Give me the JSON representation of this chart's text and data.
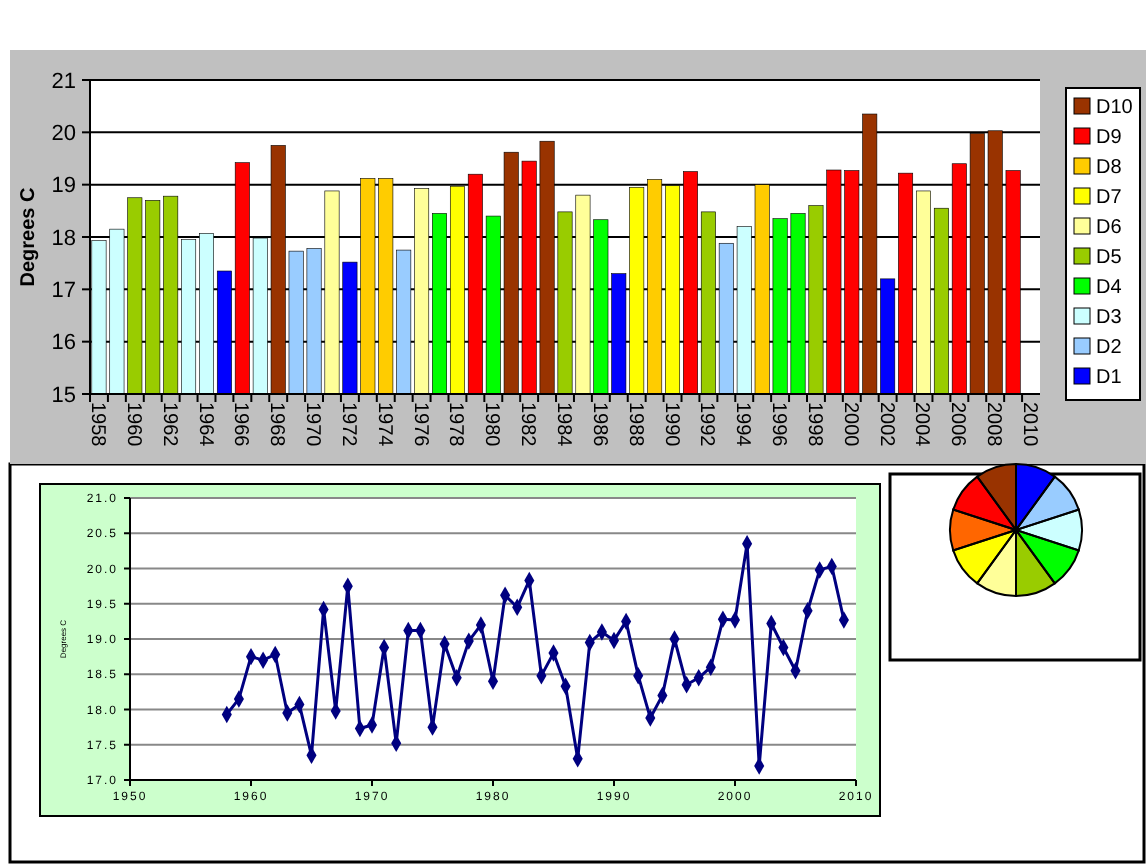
{
  "chart_data": [
    {
      "type": "bar",
      "ylabel": "Degrees C",
      "grid": "y",
      "legend": "right",
      "ylim": [
        15,
        21
      ],
      "yticks": [
        15,
        16,
        17,
        18,
        19,
        20,
        21
      ],
      "categories": [
        "1958",
        null,
        "1960",
        null,
        "1962",
        null,
        "1964",
        null,
        "1966",
        null,
        "1968",
        null,
        "1970",
        null,
        "1972",
        null,
        "1974",
        null,
        "1976",
        null,
        "1978",
        null,
        "1980",
        null,
        "1982",
        null,
        "1984",
        null,
        "1986",
        null,
        "1988",
        null,
        "1990",
        null,
        "1992",
        null,
        "1994",
        null,
        "1996",
        null,
        "1998",
        null,
        "2000",
        null,
        "2002",
        null,
        "2004",
        null,
        "2006",
        null,
        "2008",
        null,
        "2010"
      ],
      "series": [
        {
          "name": "D10",
          "color": "#993300",
          "values": [
            null,
            null,
            null,
            null,
            null,
            null,
            null,
            null,
            null,
            null,
            19.75,
            null,
            null,
            null,
            null,
            null,
            null,
            null,
            null,
            null,
            null,
            null,
            null,
            19.62,
            null,
            19.83,
            null,
            null,
            null,
            null,
            null,
            null,
            null,
            null,
            null,
            null,
            null,
            null,
            null,
            null,
            null,
            null,
            null,
            20.35,
            null,
            null,
            null,
            null,
            null,
            19.98,
            20.03,
            null,
            null
          ]
        },
        {
          "name": "D9",
          "color": "#ff0000",
          "values": [
            null,
            null,
            null,
            null,
            null,
            null,
            null,
            null,
            19.42,
            null,
            null,
            null,
            null,
            null,
            null,
            null,
            null,
            null,
            null,
            null,
            null,
            19.2,
            null,
            null,
            19.45,
            null,
            null,
            null,
            null,
            null,
            null,
            null,
            null,
            19.25,
            null,
            null,
            null,
            null,
            null,
            null,
            null,
            19.28,
            19.27,
            null,
            null,
            19.22,
            null,
            null,
            19.4,
            null,
            null,
            19.27,
            null
          ]
        },
        {
          "name": "D8",
          "color": "#ffcc00",
          "values": [
            null,
            null,
            null,
            null,
            null,
            null,
            null,
            null,
            null,
            null,
            null,
            null,
            null,
            null,
            null,
            19.12,
            19.12,
            null,
            null,
            null,
            null,
            null,
            null,
            null,
            null,
            null,
            null,
            null,
            null,
            null,
            null,
            19.1,
            null,
            null,
            null,
            null,
            null,
            19.0,
            null,
            null,
            null,
            null,
            null,
            null,
            null,
            null,
            null,
            null,
            null,
            null,
            null,
            null,
            null
          ]
        },
        {
          "name": "D7",
          "color": "#ffff00",
          "values": [
            null,
            null,
            null,
            null,
            null,
            null,
            null,
            null,
            null,
            null,
            null,
            null,
            null,
            null,
            null,
            null,
            null,
            null,
            null,
            null,
            18.97,
            null,
            null,
            null,
            null,
            null,
            null,
            null,
            null,
            null,
            18.95,
            null,
            18.98,
            null,
            null,
            null,
            null,
            null,
            null,
            null,
            null,
            null,
            null,
            null,
            null,
            null,
            null,
            null,
            null,
            null,
            null,
            null,
            null
          ]
        },
        {
          "name": "D6",
          "color": "#ffff99",
          "values": [
            null,
            null,
            null,
            null,
            null,
            null,
            null,
            null,
            null,
            null,
            null,
            null,
            null,
            18.88,
            null,
            null,
            null,
            null,
            18.93,
            null,
            null,
            null,
            null,
            null,
            null,
            null,
            null,
            18.8,
            null,
            null,
            null,
            null,
            null,
            null,
            null,
            null,
            null,
            null,
            null,
            null,
            null,
            null,
            null,
            null,
            null,
            null,
            18.88,
            null,
            null,
            null,
            null,
            null,
            null
          ]
        },
        {
          "name": "D5",
          "color": "#99cc00",
          "values": [
            null,
            null,
            18.75,
            18.7,
            18.78,
            null,
            null,
            null,
            null,
            null,
            null,
            null,
            null,
            null,
            null,
            null,
            null,
            null,
            null,
            null,
            null,
            null,
            null,
            null,
            null,
            null,
            18.48,
            null,
            null,
            null,
            null,
            null,
            null,
            null,
            18.48,
            null,
            null,
            null,
            null,
            null,
            18.6,
            null,
            null,
            null,
            null,
            null,
            null,
            18.55,
            null,
            null,
            null,
            null,
            null
          ]
        },
        {
          "name": "D4",
          "color": "#00ff00",
          "values": [
            null,
            null,
            null,
            null,
            null,
            null,
            null,
            null,
            null,
            null,
            null,
            null,
            null,
            null,
            null,
            null,
            null,
            null,
            null,
            18.45,
            null,
            null,
            18.4,
            null,
            null,
            null,
            null,
            null,
            18.33,
            null,
            null,
            null,
            null,
            null,
            null,
            null,
            null,
            null,
            18.35,
            18.45,
            null,
            null,
            null,
            null,
            null,
            null,
            null,
            null,
            null,
            null,
            null,
            null,
            null
          ]
        },
        {
          "name": "D3",
          "color": "#ccffff",
          "values": [
            17.93,
            18.15,
            null,
            null,
            null,
            17.95,
            18.07,
            null,
            null,
            17.98,
            null,
            null,
            null,
            null,
            null,
            null,
            null,
            null,
            null,
            null,
            null,
            null,
            null,
            null,
            null,
            null,
            null,
            null,
            null,
            null,
            null,
            null,
            null,
            null,
            null,
            null,
            18.2,
            null,
            null,
            null,
            null,
            null,
            null,
            null,
            null,
            null,
            null,
            null,
            null,
            null,
            null,
            null,
            null
          ]
        },
        {
          "name": "D2",
          "color": "#99ccff",
          "values": [
            null,
            null,
            null,
            null,
            null,
            null,
            null,
            null,
            null,
            null,
            null,
            17.73,
            17.78,
            null,
            null,
            null,
            null,
            17.75,
            null,
            null,
            null,
            null,
            null,
            null,
            null,
            null,
            null,
            null,
            null,
            null,
            null,
            null,
            null,
            null,
            null,
            17.88,
            null,
            null,
            null,
            null,
            null,
            null,
            null,
            null,
            null,
            null,
            null,
            null,
            null,
            null,
            null,
            null,
            null
          ]
        },
        {
          "name": "D1",
          "color": "#0000ff",
          "values": [
            null,
            null,
            null,
            null,
            null,
            null,
            null,
            17.35,
            null,
            null,
            null,
            null,
            null,
            null,
            17.52,
            null,
            null,
            null,
            null,
            null,
            null,
            null,
            null,
            null,
            null,
            null,
            null,
            null,
            null,
            17.3,
            null,
            null,
            null,
            null,
            null,
            null,
            null,
            null,
            null,
            null,
            null,
            null,
            null,
            null,
            17.2,
            null,
            null,
            null,
            null,
            null,
            null,
            null,
            null
          ]
        }
      ]
    },
    {
      "type": "line",
      "ylabel": "Degrees C",
      "grid": "y",
      "marker": "diamond",
      "xlim": [
        1950,
        2010
      ],
      "xticks": [
        1950,
        1960,
        1970,
        1980,
        1990,
        2000,
        2010
      ],
      "ylim": [
        17,
        21
      ],
      "yticks": [
        {
          "value": 17,
          "label": "17.0"
        },
        {
          "value": 17.5,
          "label": "17.5"
        },
        {
          "value": 18,
          "label": "18.0"
        },
        {
          "value": 18.5,
          "label": "18.5"
        },
        {
          "value": 19,
          "label": "19.0"
        },
        {
          "value": 19.5,
          "label": "19.5"
        },
        {
          "value": 20,
          "label": "20.0"
        },
        {
          "value": 20.5,
          "label": "20.5"
        },
        {
          "value": 21,
          "label": "21.0"
        }
      ],
      "x": [
        1958,
        1959,
        1960,
        1961,
        1962,
        1963,
        1964,
        1965,
        1966,
        1967,
        1968,
        1969,
        1970,
        1971,
        1972,
        1973,
        1974,
        1975,
        1976,
        1977,
        1978,
        1979,
        1980,
        1981,
        1982,
        1983,
        1984,
        1985,
        1986,
        1987,
        1988,
        1989,
        1990,
        1991,
        1992,
        1993,
        1994,
        1995,
        1996,
        1997,
        1998,
        1999,
        2000,
        2001,
        2002,
        2003,
        2004,
        2005,
        2006,
        2007,
        2008,
        2009
      ],
      "series": [
        {
          "color": "#000080",
          "values": [
            17.93,
            18.15,
            18.75,
            18.7,
            18.78,
            17.95,
            18.07,
            17.35,
            19.42,
            17.98,
            19.75,
            17.73,
            17.78,
            18.88,
            17.52,
            19.12,
            19.12,
            17.75,
            18.93,
            18.45,
            18.97,
            19.2,
            18.4,
            19.62,
            19.45,
            19.83,
            18.48,
            18.8,
            18.33,
            17.3,
            18.95,
            19.1,
            18.98,
            19.25,
            18.48,
            17.88,
            18.2,
            19.0,
            18.35,
            18.45,
            18.6,
            19.28,
            19.27,
            20.35,
            17.2,
            19.22,
            18.88,
            18.55,
            19.4,
            19.98,
            20.03,
            19.27
          ]
        }
      ]
    },
    {
      "type": "pie",
      "categories": [
        null,
        null,
        null,
        null,
        null,
        null,
        null,
        null,
        null,
        null
      ],
      "values": [
        10,
        10,
        10,
        10,
        10,
        10,
        10,
        10,
        10,
        10
      ],
      "colors": [
        "#0000ff",
        "#99ccff",
        "#ccffff",
        "#00ff00",
        "#99cc00",
        "#ffff99",
        "#ffff00",
        "#ff6600",
        "#ff0000",
        "#993300"
      ]
    }
  ]
}
